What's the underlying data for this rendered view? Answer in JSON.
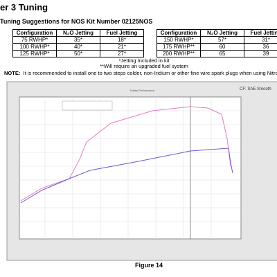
{
  "header": {
    "title": "er 3 Tuning",
    "subtitle": "Tuning Suggestions for NOS Kit Number 02125NOS"
  },
  "tables": [
    {
      "columns": [
        "Configuration",
        "N₂O Jetting",
        "Fuel Jetting"
      ],
      "rows": [
        [
          "75 RWHP*",
          "35*",
          "18*"
        ],
        [
          "100 RWHP*",
          "40*",
          "21*"
        ],
        [
          "125 RWHP*",
          "50*",
          "27*"
        ]
      ]
    },
    {
      "columns": [
        "Configuration",
        "N₂O Jetting",
        "Fuel Jetting"
      ],
      "rows": [
        [
          "150 RWHP*",
          "57*",
          "31*"
        ],
        [
          "175 RWHP**",
          "60",
          "36"
        ],
        [
          "200 RWHP**",
          "65",
          "39"
        ]
      ]
    }
  ],
  "footnotes": [
    "*Jetting Included in kit",
    "**Will require an upgraded fuel system"
  ],
  "note": {
    "label": "NOTE:",
    "text": "It is recommended to install one to two steps colder, non-Iridium or other fine wire spark plugs when using Nitrous"
  },
  "figure": {
    "title": "Holley Performance",
    "correction": "CF: SAE Smooth",
    "caption": "Figure 14"
  }
}
